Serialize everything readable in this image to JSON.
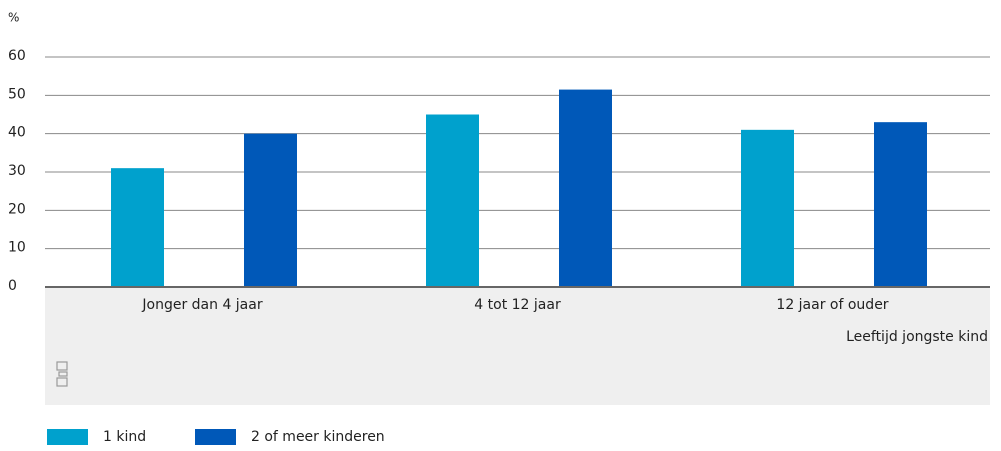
{
  "chart_data": {
    "type": "bar",
    "y_label": "%",
    "x_label": "Leeftijd jongste kind",
    "categories": [
      "Jonger dan 4 jaar",
      "4 tot 12 jaar",
      "12 jaar of ouder"
    ],
    "series": [
      {
        "name": "1 kind",
        "color": "#00a1cd",
        "values": [
          31,
          45,
          41
        ]
      },
      {
        "name": "2 of meer kinderen",
        "color": "#0058b8",
        "values": [
          40,
          51.5,
          43
        ]
      }
    ],
    "ylim": [
      0,
      60
    ],
    "yticks": [
      0,
      10,
      20,
      30,
      40,
      50,
      60
    ],
    "grid": true
  }
}
